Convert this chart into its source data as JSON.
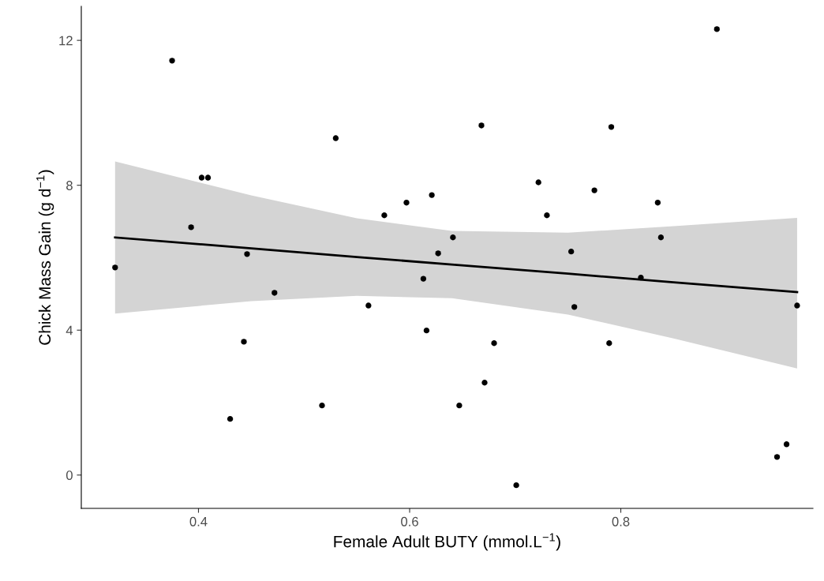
{
  "chart_data": {
    "type": "scatter",
    "xlabel": "Female Adult BUTY (mmol.L$^{−1}$)",
    "ylabel": "Chick Mass Gain (g d$^{−1}$)",
    "xlim": [
      0.289,
      0.982
    ],
    "xticks": [
      0.4,
      0.6,
      0.8
    ],
    "ylim": [
      -0.92,
      12.94
    ],
    "yticks": [
      0,
      4,
      8,
      12
    ],
    "grid": false,
    "marker": "circle",
    "series": [
      {
        "color": "#000000",
        "x": [
          0.321,
          0.375,
          0.393,
          0.403,
          0.409,
          0.446,
          0.443,
          0.43,
          0.472,
          0.517,
          0.53,
          0.561,
          0.576,
          0.597,
          0.621,
          0.627,
          0.613,
          0.616,
          0.641,
          0.647,
          0.668,
          0.671,
          0.68,
          0.701,
          0.722,
          0.73,
          0.753,
          0.756,
          0.775,
          0.791,
          0.789,
          0.819,
          0.835,
          0.838,
          0.891,
          0.948,
          0.957,
          0.967
        ],
        "values": [
          5.73,
          11.44,
          6.84,
          8.21,
          8.21,
          6.1,
          3.68,
          1.55,
          5.03,
          1.92,
          9.3,
          4.68,
          7.17,
          7.52,
          7.73,
          6.12,
          5.42,
          3.99,
          6.56,
          1.92,
          9.65,
          2.55,
          3.64,
          -0.28,
          8.08,
          7.17,
          6.17,
          4.64,
          7.86,
          9.61,
          3.64,
          5.45,
          7.52,
          6.56,
          12.31,
          0.5,
          0.85,
          4.68
        ]
      },
      {
        "type": "line",
        "color": "#000000",
        "line_style": "solid",
        "marker": "none",
        "x": [
          0.321,
          0.45,
          0.55,
          0.64,
          0.75,
          0.85,
          0.967
        ],
        "values": [
          6.56,
          6.26,
          6.02,
          5.81,
          5.56,
          5.32,
          5.05
        ],
        "lower": [
          4.46,
          4.8,
          4.95,
          4.88,
          4.43,
          3.77,
          2.94
        ],
        "upper": [
          8.66,
          7.72,
          7.09,
          6.74,
          6.69,
          6.87,
          7.1
        ]
      }
    ]
  }
}
